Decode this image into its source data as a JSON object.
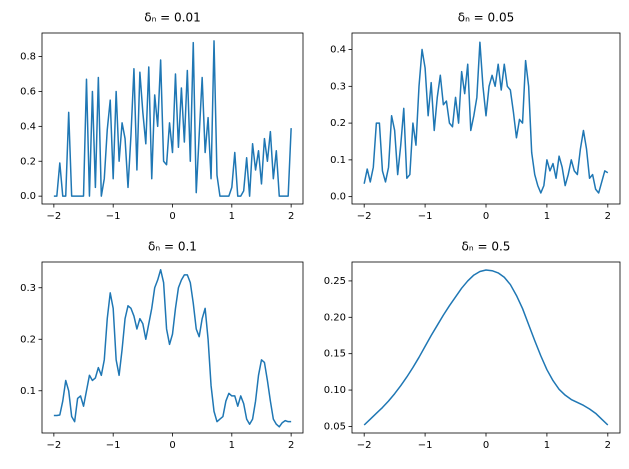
{
  "chart_data": [
    {
      "type": "line",
      "title": "δₙ = 0.01",
      "color": "#1f77b4",
      "x": [
        -2,
        -1.95,
        -1.9,
        -1.85,
        -1.8,
        -1.75,
        -1.7,
        -1.65,
        -1.6,
        -1.55,
        -1.5,
        -1.45,
        -1.4,
        -1.35,
        -1.3,
        -1.25,
        -1.2,
        -1.15,
        -1.1,
        -1.05,
        -1,
        -0.95,
        -0.9,
        -0.85,
        -0.8,
        -0.75,
        -0.7,
        -0.65,
        -0.6,
        -0.55,
        -0.5,
        -0.45,
        -0.4,
        -0.35,
        -0.3,
        -0.25,
        -0.2,
        -0.15,
        -0.1,
        -0.05,
        0,
        0.05,
        0.1,
        0.15,
        0.2,
        0.25,
        0.3,
        0.35,
        0.4,
        0.45,
        0.5,
        0.55,
        0.6,
        0.65,
        0.7,
        0.75,
        0.8,
        0.85,
        0.9,
        0.95,
        1,
        1.05,
        1.1,
        1.15,
        1.2,
        1.25,
        1.3,
        1.35,
        1.4,
        1.45,
        1.5,
        1.55,
        1.6,
        1.65,
        1.7,
        1.75,
        1.8,
        1.85,
        1.9,
        1.95,
        2
      ],
      "values": [
        0,
        0,
        0.19,
        0,
        0,
        0.48,
        0,
        0,
        0,
        0,
        0,
        0.67,
        0,
        0.6,
        0.05,
        0.68,
        0,
        0.1,
        0.38,
        0.55,
        0.1,
        0.6,
        0.2,
        0.42,
        0.33,
        0.05,
        0.35,
        0.73,
        0.15,
        0.71,
        0.48,
        0.3,
        0.74,
        0.1,
        0.58,
        0.4,
        0.78,
        0.2,
        0.18,
        0.42,
        0.25,
        0.7,
        0.28,
        0.62,
        0.31,
        0.72,
        0.2,
        0.88,
        0.02,
        0.35,
        0.68,
        0.25,
        0.45,
        0.1,
        0.89,
        0.12,
        0,
        0,
        0,
        0,
        0.05,
        0.25,
        0,
        0,
        0.03,
        0.22,
        0,
        0.3,
        0.15,
        0.26,
        0.07,
        0.33,
        0.2,
        0.37,
        0.1,
        0.26,
        0,
        0,
        0,
        0,
        0.39
      ],
      "xlim": [
        -2.2,
        2.2
      ],
      "xticks": [
        {
          "value": -2,
          "label": "−2"
        },
        {
          "value": -1,
          "label": "−1"
        },
        0,
        1,
        2
      ],
      "ylim": [
        -0.045,
        0.935
      ],
      "yticks": [
        {
          "value": 0,
          "label": "0.0"
        },
        0.2,
        0.4,
        0.6,
        0.8
      ]
    },
    {
      "type": "line",
      "title": "δₙ = 0.05",
      "color": "#1f77b4",
      "x": [
        -2,
        -1.95,
        -1.9,
        -1.85,
        -1.8,
        -1.75,
        -1.7,
        -1.65,
        -1.6,
        -1.55,
        -1.5,
        -1.45,
        -1.4,
        -1.35,
        -1.3,
        -1.25,
        -1.2,
        -1.15,
        -1.1,
        -1.05,
        -1,
        -0.95,
        -0.9,
        -0.85,
        -0.8,
        -0.75,
        -0.7,
        -0.65,
        -0.6,
        -0.55,
        -0.5,
        -0.45,
        -0.4,
        -0.35,
        -0.3,
        -0.25,
        -0.2,
        -0.15,
        -0.1,
        -0.05,
        0,
        0.05,
        0.1,
        0.15,
        0.2,
        0.25,
        0.3,
        0.35,
        0.4,
        0.45,
        0.5,
        0.55,
        0.6,
        0.65,
        0.7,
        0.75,
        0.8,
        0.85,
        0.9,
        0.95,
        1,
        1.05,
        1.1,
        1.15,
        1.2,
        1.25,
        1.3,
        1.35,
        1.4,
        1.45,
        1.5,
        1.55,
        1.6,
        1.65,
        1.7,
        1.75,
        1.8,
        1.85,
        1.9,
        1.95,
        2
      ],
      "values": [
        0.035,
        0.075,
        0.04,
        0.08,
        0.2,
        0.2,
        0.07,
        0.04,
        0.08,
        0.22,
        0.18,
        0.06,
        0.14,
        0.24,
        0.05,
        0.06,
        0.2,
        0.14,
        0.3,
        0.4,
        0.35,
        0.22,
        0.31,
        0.18,
        0.27,
        0.33,
        0.25,
        0.26,
        0.2,
        0.19,
        0.27,
        0.2,
        0.34,
        0.28,
        0.36,
        0.18,
        0.22,
        0.27,
        0.42,
        0.3,
        0.22,
        0.3,
        0.33,
        0.3,
        0.36,
        0.29,
        0.36,
        0.3,
        0.29,
        0.23,
        0.16,
        0.21,
        0.2,
        0.37,
        0.3,
        0.12,
        0.06,
        0.03,
        0.01,
        0.03,
        0.1,
        0.07,
        0.09,
        0.05,
        0.11,
        0.08,
        0.03,
        0.06,
        0.1,
        0.07,
        0.06,
        0.13,
        0.18,
        0.13,
        0.05,
        0.06,
        0.02,
        0.01,
        0.04,
        0.07,
        0.065
      ],
      "xlim": [
        -2.2,
        2.2
      ],
      "xticks": [
        {
          "value": -2,
          "label": "−2"
        },
        {
          "value": -1,
          "label": "−1"
        },
        0,
        1,
        2
      ],
      "ylim": [
        -0.02,
        0.445
      ],
      "yticks": [
        {
          "value": 0,
          "label": "0.0"
        },
        0.1,
        0.2,
        0.3,
        0.4
      ]
    },
    {
      "type": "line",
      "title": "δₙ = 0.1",
      "color": "#1f77b4",
      "x": [
        -2,
        -1.95,
        -1.9,
        -1.85,
        -1.8,
        -1.75,
        -1.7,
        -1.65,
        -1.6,
        -1.55,
        -1.5,
        -1.45,
        -1.4,
        -1.35,
        -1.3,
        -1.25,
        -1.2,
        -1.15,
        -1.1,
        -1.05,
        -1,
        -0.95,
        -0.9,
        -0.85,
        -0.8,
        -0.75,
        -0.7,
        -0.65,
        -0.6,
        -0.55,
        -0.5,
        -0.45,
        -0.4,
        -0.35,
        -0.3,
        -0.25,
        -0.2,
        -0.15,
        -0.1,
        -0.05,
        0,
        0.05,
        0.1,
        0.15,
        0.2,
        0.25,
        0.3,
        0.35,
        0.4,
        0.45,
        0.5,
        0.55,
        0.6,
        0.65,
        0.7,
        0.75,
        0.8,
        0.85,
        0.9,
        0.95,
        1,
        1.05,
        1.1,
        1.15,
        1.2,
        1.25,
        1.3,
        1.35,
        1.4,
        1.45,
        1.5,
        1.55,
        1.6,
        1.65,
        1.7,
        1.75,
        1.8,
        1.85,
        1.9,
        1.95,
        2
      ],
      "values": [
        0.052,
        0.052,
        0.053,
        0.08,
        0.12,
        0.1,
        0.05,
        0.04,
        0.085,
        0.09,
        0.07,
        0.1,
        0.13,
        0.12,
        0.125,
        0.145,
        0.13,
        0.16,
        0.24,
        0.29,
        0.26,
        0.16,
        0.13,
        0.18,
        0.24,
        0.265,
        0.26,
        0.245,
        0.22,
        0.24,
        0.23,
        0.2,
        0.23,
        0.26,
        0.3,
        0.315,
        0.335,
        0.31,
        0.22,
        0.19,
        0.21,
        0.26,
        0.3,
        0.315,
        0.325,
        0.325,
        0.31,
        0.27,
        0.22,
        0.205,
        0.24,
        0.26,
        0.2,
        0.11,
        0.06,
        0.04,
        0.045,
        0.05,
        0.08,
        0.095,
        0.09,
        0.09,
        0.07,
        0.09,
        0.075,
        0.045,
        0.035,
        0.045,
        0.08,
        0.13,
        0.16,
        0.155,
        0.12,
        0.08,
        0.045,
        0.035,
        0.03,
        0.038,
        0.042,
        0.04,
        0.04
      ],
      "xlim": [
        -2.2,
        2.2
      ],
      "xticks": [
        {
          "value": -2,
          "label": "−2"
        },
        {
          "value": -1,
          "label": "−1"
        },
        0,
        1,
        2
      ],
      "ylim": [
        0.018,
        0.35
      ],
      "yticks": [
        0.1,
        0.2,
        0.3
      ]
    },
    {
      "type": "line",
      "title": "δₙ = 0.5",
      "color": "#1f77b4",
      "x": [
        -2,
        -1.9,
        -1.8,
        -1.7,
        -1.6,
        -1.5,
        -1.4,
        -1.3,
        -1.2,
        -1.1,
        -1,
        -0.9,
        -0.8,
        -0.7,
        -0.6,
        -0.5,
        -0.4,
        -0.3,
        -0.2,
        -0.1,
        0,
        0.1,
        0.2,
        0.3,
        0.4,
        0.5,
        0.6,
        0.7,
        0.8,
        0.9,
        1,
        1.1,
        1.2,
        1.3,
        1.4,
        1.5,
        1.6,
        1.7,
        1.8,
        1.9,
        2
      ],
      "values": [
        0.052,
        0.06,
        0.068,
        0.076,
        0.085,
        0.095,
        0.106,
        0.118,
        0.131,
        0.145,
        0.16,
        0.175,
        0.189,
        0.203,
        0.216,
        0.228,
        0.24,
        0.25,
        0.258,
        0.263,
        0.265,
        0.264,
        0.261,
        0.255,
        0.245,
        0.23,
        0.212,
        0.19,
        0.168,
        0.147,
        0.128,
        0.113,
        0.101,
        0.093,
        0.087,
        0.083,
        0.079,
        0.074,
        0.068,
        0.06,
        0.052
      ],
      "xlim": [
        -2.2,
        2.2
      ],
      "xticks": [
        {
          "value": -2,
          "label": "−2"
        },
        {
          "value": -1,
          "label": "−1"
        },
        0,
        1,
        2
      ],
      "ylim": [
        0.041,
        0.276
      ],
      "yticks": [
        0.05,
        {
          "value": 0.1,
          "label": "0.10"
        },
        0.15,
        {
          "value": 0.2,
          "label": "0.20"
        },
        0.25
      ]
    }
  ]
}
